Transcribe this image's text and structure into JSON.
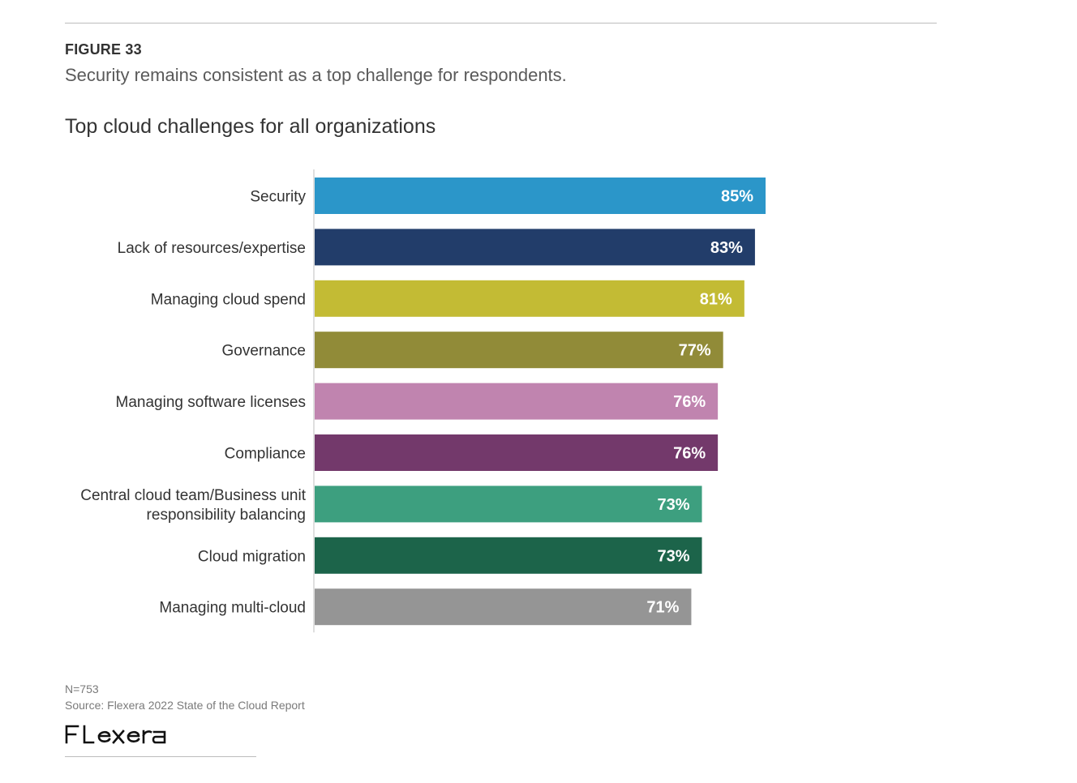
{
  "figure": {
    "label": "FIGURE 33",
    "caption": "Security remains consistent as a top challenge for respondents."
  },
  "chart_data": {
    "type": "bar",
    "orientation": "horizontal",
    "title": "Top cloud challenges for all organizations",
    "xlabel": "",
    "ylabel": "",
    "unit": "%",
    "xlim": [
      0,
      100
    ],
    "grid": false,
    "legend": "none",
    "categories": [
      "Security",
      "Lack of resources/expertise",
      "Managing cloud spend",
      "Governance",
      "Managing software licenses",
      "Compliance",
      "Central cloud team/Business unit responsibility balancing",
      "Cloud migration",
      "Managing multi-cloud"
    ],
    "category_lines": [
      [
        "Security"
      ],
      [
        "Lack of resources/expertise"
      ],
      [
        "Managing cloud spend"
      ],
      [
        "Governance"
      ],
      [
        "Managing software licenses"
      ],
      [
        "Compliance"
      ],
      [
        "Central cloud team/Business unit",
        "responsibility balancing"
      ],
      [
        "Cloud migration"
      ],
      [
        "Managing multi-cloud"
      ]
    ],
    "values": [
      85,
      83,
      81,
      77,
      76,
      76,
      73,
      73,
      71
    ],
    "value_labels": [
      "85%",
      "83%",
      "81%",
      "77%",
      "76%",
      "76%",
      "73%",
      "73%",
      "71%"
    ],
    "colors": [
      "#2b96c9",
      "#223d6a",
      "#c3bb34",
      "#918b38",
      "#c084af",
      "#73396b",
      "#3d9f7f",
      "#1c644a",
      "#959595"
    ]
  },
  "footer": {
    "n_note": "N=753",
    "source": "Source: Flexera 2022 State of the Cloud Report",
    "brand": "Flexera",
    "brand_color": "#111111"
  }
}
